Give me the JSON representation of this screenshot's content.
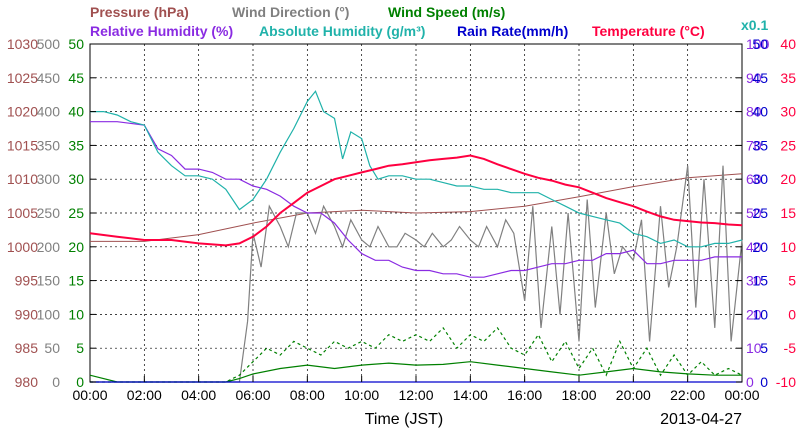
{
  "chart_data": {
    "type": "line",
    "legend": {
      "row1": [
        {
          "label": "Pressure (hPa)",
          "color": "#a05050"
        },
        {
          "label": "Wind Direction (°)",
          "color": "#808080"
        },
        {
          "label": "Wind Speed (m/s)",
          "color": "#008000"
        }
      ],
      "row2": [
        {
          "label": "Relative Humidity (%)",
          "color": "#8a2be2"
        },
        {
          "label": "Absolute Humidity (g/m³)",
          "color": "#20b2aa"
        },
        {
          "label": "Rain Rate(mm/h)",
          "color": "#0000cd"
        },
        {
          "label": "Temperature (°C)",
          "color": "#ff0040"
        }
      ],
      "scale_note": {
        "label": "x0.1",
        "color": "#20b2aa"
      }
    },
    "xlabel": "Time (JST)",
    "date": "2013-04-27",
    "x_ticks": [
      "00:00",
      "02:00",
      "04:00",
      "06:00",
      "08:00",
      "10:00",
      "12:00",
      "14:00",
      "16:00",
      "18:00",
      "20:00",
      "22:00",
      "00:00"
    ],
    "xlim": [
      0,
      24
    ],
    "grid": true,
    "axes": {
      "pressure": {
        "color": "#a05050",
        "ticks": [
          "1030",
          "1025",
          "1020",
          "1015",
          "1010",
          "1005",
          "1000",
          "995",
          "990",
          "985",
          "980"
        ],
        "ylim": [
          980,
          1030
        ]
      },
      "wind_direction": {
        "color": "#808080",
        "ticks": [
          "500",
          "450",
          "400",
          "350",
          "300",
          "250",
          "200",
          "150",
          "100",
          "50",
          "0"
        ],
        "ylim": [
          0,
          500
        ]
      },
      "wind_speed": {
        "color": "#008000",
        "ticks": [
          "50",
          "45",
          "40",
          "35",
          "30",
          "25",
          "20",
          "15",
          "10",
          "5",
          "0"
        ],
        "ylim": [
          0,
          50
        ]
      },
      "humidity": {
        "color": "#8a2be2",
        "ticks": [
          "100",
          "90",
          "80",
          "70",
          "60",
          "50",
          "40",
          "30",
          "20",
          "10",
          "0"
        ],
        "ylim": [
          0,
          100
        ]
      },
      "rain_rate": {
        "color": "#0000cd",
        "ticks": [
          "50",
          "45",
          "40",
          "35",
          "30",
          "25",
          "20",
          "15",
          "10",
          "5",
          "0"
        ],
        "ylim": [
          0,
          50
        ]
      },
      "temperature": {
        "color": "#ff0040",
        "ticks": [
          "40",
          "35",
          "30",
          "25",
          "20",
          "15",
          "10",
          "5",
          "0",
          "-5",
          "-10"
        ],
        "ylim": [
          -10,
          40
        ]
      }
    },
    "series": [
      {
        "key": "pressure",
        "color": "#a05050",
        "x": [
          0,
          2,
          4,
          6,
          8,
          10,
          12,
          14,
          16,
          18,
          20,
          22,
          24
        ],
        "y": [
          1000.8,
          1000.8,
          1001.8,
          1003.5,
          1005.0,
          1005.4,
          1005.0,
          1005.2,
          1006.0,
          1007.4,
          1008.9,
          1010.2,
          1010.8
        ]
      },
      {
        "key": "wind_direction",
        "color": "#808080",
        "x": [
          0,
          5.5,
          5.8,
          6.0,
          6.3,
          6.6,
          7.0,
          7.3,
          7.6,
          8.0,
          8.3,
          8.6,
          9.0,
          9.3,
          9.6,
          10.0,
          10.3,
          10.6,
          11.0,
          11.3,
          11.6,
          12.0,
          12.3,
          12.6,
          13.0,
          13.3,
          13.6,
          14.0,
          14.3,
          14.6,
          15.0,
          15.3,
          15.6,
          16.0,
          16.3,
          16.6,
          17.0,
          17.3,
          17.6,
          18.0,
          18.3,
          18.6,
          19.0,
          19.3,
          19.6,
          20.0,
          20.3,
          20.6,
          21.0,
          21.3,
          21.6,
          22.0,
          22.3,
          22.6,
          23.0,
          23.3,
          23.6,
          24.0
        ],
        "y": [
          0,
          0,
          90,
          220,
          170,
          260,
          230,
          200,
          250,
          250,
          220,
          260,
          230,
          200,
          240,
          210,
          200,
          230,
          200,
          200,
          220,
          210,
          200,
          220,
          200,
          210,
          230,
          210,
          200,
          230,
          200,
          240,
          220,
          120,
          260,
          80,
          230,
          100,
          250,
          60,
          270,
          110,
          250,
          160,
          200,
          180,
          240,
          60,
          260,
          140,
          200,
          320,
          110,
          300,
          80,
          320,
          60,
          210
        ]
      },
      {
        "key": "wind_speed_avg",
        "color": "#008000",
        "style": "solid",
        "x": [
          0,
          1,
          2,
          3,
          4,
          5,
          5.5,
          6,
          7,
          8,
          9,
          10,
          11,
          12,
          13,
          14,
          15,
          16,
          17,
          18,
          19,
          20,
          21,
          22,
          23,
          24
        ],
        "y": [
          1,
          0,
          0,
          0,
          0,
          0,
          0.5,
          1.2,
          2.0,
          2.5,
          2.0,
          2.5,
          2.8,
          2.5,
          2.6,
          3.0,
          2.5,
          2.0,
          1.5,
          1.0,
          1.5,
          2.0,
          1.5,
          1.2,
          1.0,
          1.0
        ]
      },
      {
        "key": "wind_speed_gust",
        "color": "#008000",
        "style": "dashed",
        "x": [
          0,
          1,
          2,
          3,
          4,
          5,
          5.5,
          6,
          6.5,
          7,
          7.5,
          8,
          8.5,
          9,
          9.5,
          10,
          10.5,
          11,
          11.5,
          12,
          12.5,
          13,
          13.5,
          14,
          14.5,
          15,
          15.5,
          16,
          16.5,
          17,
          17.5,
          18,
          18.5,
          19,
          19.5,
          20,
          20.5,
          21,
          21.5,
          22,
          22.5,
          23,
          23.5,
          24
        ],
        "y": [
          0,
          0,
          0,
          0,
          0,
          0,
          1,
          3,
          5,
          4,
          6,
          5,
          4,
          6,
          5,
          6,
          5,
          7,
          6,
          7,
          6,
          8,
          5,
          7,
          6,
          8,
          5,
          4,
          7,
          3,
          6,
          2,
          5,
          1,
          6,
          2,
          5,
          1,
          4,
          1,
          3,
          1,
          2,
          1
        ]
      },
      {
        "key": "relative_humidity",
        "color": "#8a2be2",
        "x": [
          0,
          1,
          2,
          2.5,
          3,
          3.5,
          4,
          4.5,
          5,
          5.5,
          6,
          6.5,
          7,
          7.5,
          8,
          8.5,
          9,
          9.5,
          10,
          10.5,
          11,
          11.5,
          12,
          12.5,
          13,
          13.5,
          14,
          14.5,
          15,
          15.5,
          16,
          16.5,
          17,
          17.5,
          18,
          18.5,
          19,
          19.5,
          20,
          20.5,
          21,
          21.5,
          22,
          22.5,
          23,
          23.5,
          24
        ],
        "y": [
          77,
          77,
          76,
          69,
          67,
          63,
          63,
          62,
          60,
          60,
          58,
          57,
          55,
          52,
          50,
          50,
          47,
          42,
          38,
          36,
          36,
          34,
          33,
          33,
          32,
          32,
          31,
          31,
          32,
          33,
          33,
          34,
          35,
          35,
          36,
          36,
          38,
          38,
          39,
          35,
          35,
          36,
          36,
          36,
          37,
          37,
          37
        ]
      },
      {
        "key": "absolute_humidity",
        "color": "#20b2aa",
        "x": [
          0,
          0.5,
          1,
          1.5,
          2,
          2.5,
          3,
          3.5,
          4,
          4.5,
          5,
          5.5,
          6,
          6.5,
          7,
          7.5,
          8,
          8.3,
          8.6,
          9,
          9.3,
          9.6,
          10,
          10.3,
          10.6,
          11,
          11.5,
          12,
          12.5,
          13,
          13.5,
          14,
          14.5,
          15,
          15.5,
          16,
          16.5,
          17,
          17.5,
          18,
          18.5,
          19,
          19.5,
          20,
          20.5,
          21,
          21.5,
          22,
          22.5,
          23,
          23.5,
          24
        ],
        "y": [
          400,
          400,
          395,
          385,
          380,
          340,
          320,
          305,
          305,
          300,
          285,
          255,
          270,
          300,
          340,
          375,
          415,
          430,
          400,
          390,
          330,
          370,
          360,
          320,
          300,
          305,
          305,
          300,
          300,
          295,
          290,
          290,
          285,
          285,
          280,
          280,
          280,
          270,
          260,
          250,
          245,
          240,
          235,
          220,
          215,
          205,
          210,
          200,
          200,
          205,
          205,
          210
        ]
      },
      {
        "key": "rain_rate",
        "color": "#0000cd",
        "x": [
          0,
          24
        ],
        "y": [
          0,
          0
        ]
      },
      {
        "key": "temperature",
        "color": "#ff0040",
        "x": [
          0,
          1,
          2,
          3,
          4,
          5,
          5.5,
          6,
          6.5,
          7,
          7.5,
          8,
          8.5,
          9,
          9.5,
          10,
          10.5,
          11,
          11.5,
          12,
          12.5,
          13,
          13.5,
          14,
          14.5,
          15,
          15.5,
          16,
          16.5,
          17,
          17.5,
          18,
          18.5,
          19,
          19.5,
          20,
          20.5,
          21,
          21.5,
          22,
          22.5,
          23,
          23.5,
          24
        ],
        "y": [
          12.0,
          11.5,
          11.0,
          11.0,
          10.5,
          10.2,
          10.5,
          11.5,
          13.0,
          15.0,
          16.5,
          18.0,
          19.0,
          20.0,
          20.5,
          21.0,
          21.5,
          22.0,
          22.2,
          22.5,
          22.8,
          23.0,
          23.2,
          23.5,
          23.0,
          22.2,
          21.5,
          20.8,
          20.2,
          19.8,
          19.2,
          18.8,
          18.0,
          17.2,
          16.6,
          16.0,
          15.2,
          14.5,
          14.0,
          13.8,
          13.6,
          13.5,
          13.3,
          13.2
        ]
      }
    ]
  }
}
